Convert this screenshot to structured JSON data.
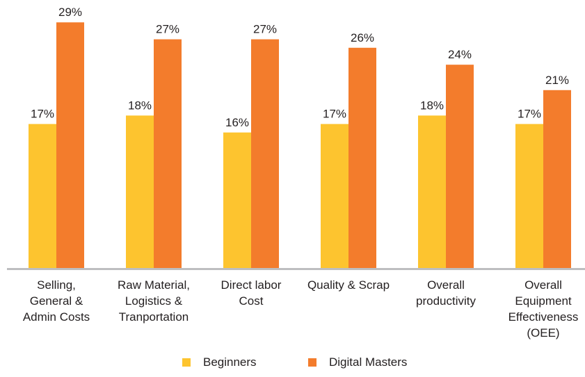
{
  "chart_data": {
    "type": "bar",
    "categories": [
      [
        "Selling,",
        "General &",
        "Admin Costs"
      ],
      [
        "Raw Material,",
        "Logistics &",
        "Tranportation"
      ],
      [
        "Direct labor",
        "Cost"
      ],
      [
        "Quality & Scrap"
      ],
      [
        "Overall",
        "productivity"
      ],
      [
        "Overall",
        "Equipment",
        "Effectiveness",
        "(OEE)"
      ]
    ],
    "series": [
      {
        "name": "Beginners",
        "color": "#FDC42F",
        "values": [
          17,
          18,
          16,
          17,
          18,
          17
        ],
        "labels": [
          "17%",
          "18%",
          "16%",
          "17%",
          "18%",
          "17%"
        ]
      },
      {
        "name": "Digital Masters",
        "color": "#F37C2C",
        "values": [
          29,
          27,
          27,
          26,
          24,
          21
        ],
        "labels": [
          "29%",
          "27%",
          "27%",
          "26%",
          "24%",
          "21%"
        ]
      }
    ],
    "ylim": [
      0,
      30
    ],
    "grid": false,
    "legend": "bottom",
    "axis_color": "#BDBEC0"
  },
  "legend": {
    "items": [
      {
        "label": "Beginners",
        "color": "#FDC42F"
      },
      {
        "label": "Digital Masters",
        "color": "#F37C2C"
      }
    ]
  }
}
